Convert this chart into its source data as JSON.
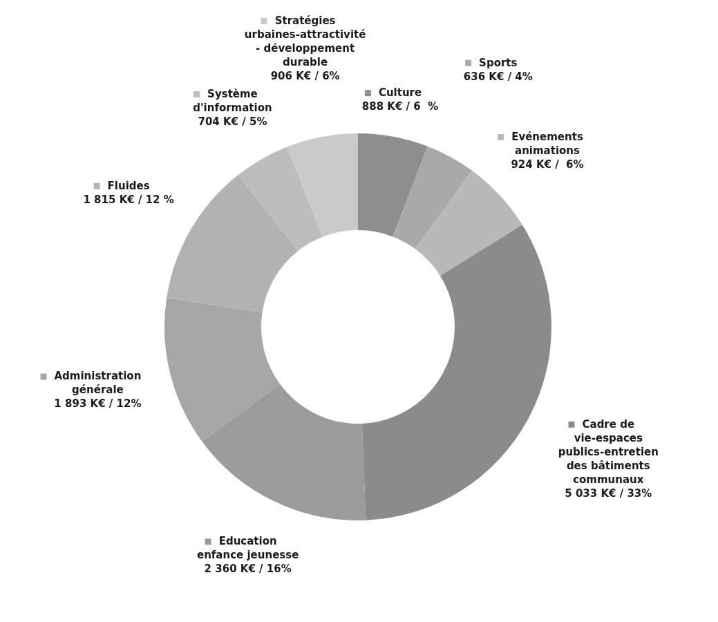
{
  "chart_data": {
    "type": "donut",
    "categories": [
      "Culture",
      "Sports",
      "Evénements animations",
      "Cadre de vie-espaces publics-entretien des bâtiments communaux",
      "Education enfance jeunesse",
      "Administration générale",
      "Fluides",
      "Système d'information",
      "Stratégies urbaines-attractivité - développement durable"
    ],
    "values": [
      888,
      636,
      924,
      5033,
      2360,
      1893,
      1815,
      704,
      906
    ],
    "value_labels": [
      "888 K€ / 6  %",
      "636 K€ / 4%",
      "924 K€ /  6%",
      "5 033 K€ / 33%",
      "2 360 K€ / 16%",
      "1 893 K€ / 12%",
      "1 815 K€ / 12 %",
      "704 K€ / 5%",
      "906 K€ / 6%"
    ],
    "colors": [
      "#8e8e8e",
      "#a9a9a9",
      "#b9b9b9",
      "#8b8b8b",
      "#9b9b9b",
      "#a6a6a6",
      "#b2b2b2",
      "#bdbdbd",
      "#cacaca"
    ],
    "legend": "top"
  }
}
